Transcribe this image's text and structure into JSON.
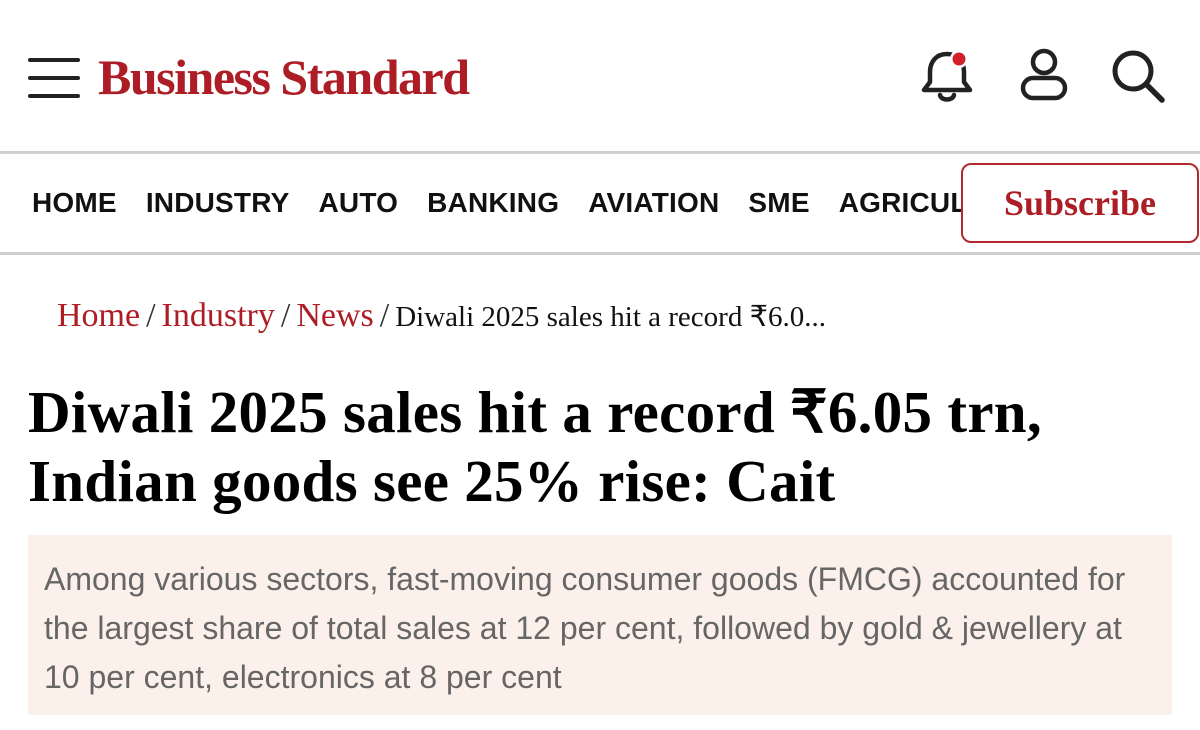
{
  "header": {
    "logo_text": "Business Standard",
    "brand_color": "#ad1d25",
    "icons": [
      "menu-icon",
      "bell-icon",
      "user-icon",
      "search-icon"
    ],
    "notification_dot_color": "#d0212a"
  },
  "nav": {
    "items": [
      "HOME",
      "INDUSTRY",
      "AUTO",
      "BANKING",
      "AVIATION",
      "SME",
      "AGRICULTURE"
    ],
    "subscribe_label": "Subscribe"
  },
  "breadcrumb": {
    "items": [
      "Home",
      "Industry",
      "News"
    ],
    "separator": "/",
    "current": "Diwali 2025 sales hit a record ₹6.0..."
  },
  "article": {
    "headline": "Diwali 2025 sales hit a record ₹6.05 trn, Indian goods see 25% rise: Cait",
    "summary": "Among various sectors, fast-moving consumer goods (FMCG) accounted for the largest share of total sales at 12 per cent, followed by gold & jewellery at 10 per cent, electronics at 8 per cent",
    "summary_bg": "#fbf1ea"
  }
}
